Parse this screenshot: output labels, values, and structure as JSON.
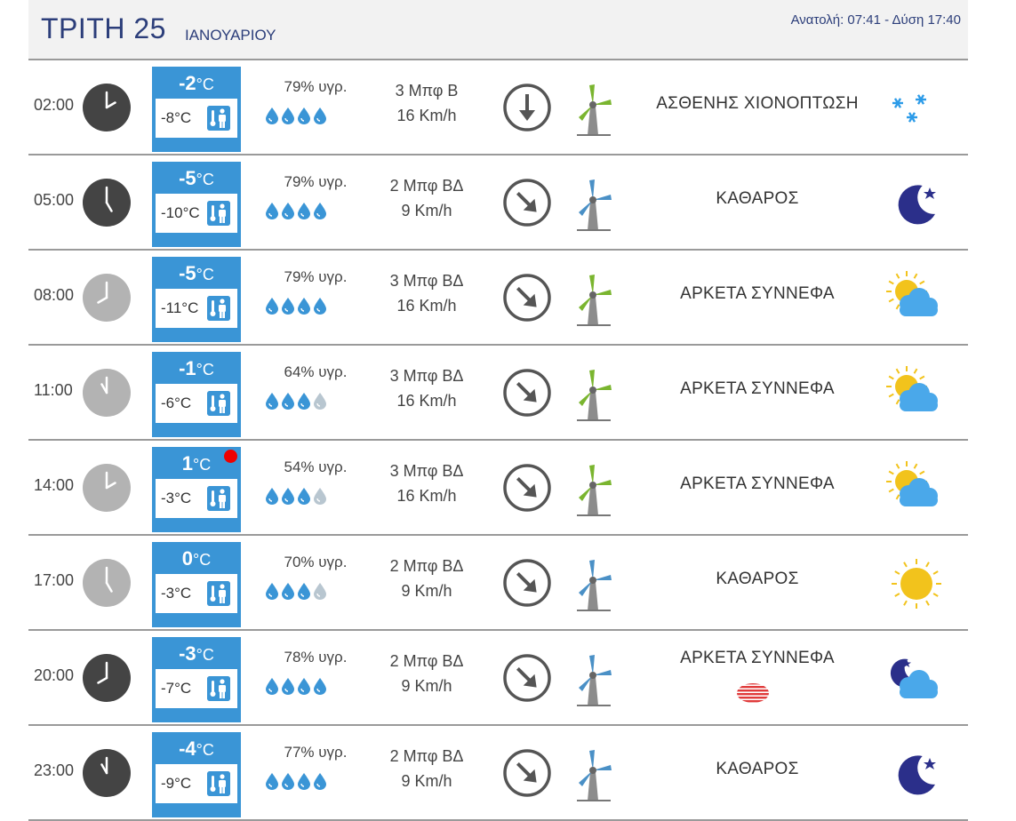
{
  "header": {
    "day": "ΤΡΙΤΗ 25",
    "month": "ΙΑΝΟΥΑΡΙΟΥ",
    "sun": "Ανατολή: 07:41  - Δύση 17:40"
  },
  "colors": {
    "accent": "#3a95d6",
    "title": "#2c3e7a",
    "drop_full": "#3a95d6",
    "drop_empty": "#b8c6d0",
    "alert": "#ee0000",
    "clock_dark": "#444444",
    "clock_light": "#b3b3b3"
  },
  "rows": [
    {
      "time": "02:00",
      "clock_hour": 2,
      "clock_style": "dark",
      "temp": "-2",
      "unit": "°C",
      "feels": "-8°C",
      "humidity": "79% υγρ.",
      "drops_full": 4,
      "beaufort": "3 Μπφ Β",
      "speed": "16 Km/h",
      "direction_deg": 0,
      "turbine": "green",
      "condition": "ΑΣΘΕΝΗΣ ΧΙΟΝΟΠΤΩΣΗ",
      "icon": "snow-icon",
      "alert": false
    },
    {
      "time": "05:00",
      "clock_hour": 5,
      "clock_style": "dark",
      "temp": "-5",
      "unit": "°C",
      "feels": "-10°C",
      "humidity": "79% υγρ.",
      "drops_full": 4,
      "beaufort": "2 Μπφ ΒΔ",
      "speed": "9 Km/h",
      "direction_deg": -45,
      "turbine": "blue",
      "condition": "ΚΑΘΑΡΟΣ",
      "icon": "moon-icon",
      "alert": false
    },
    {
      "time": "08:00",
      "clock_hour": 8,
      "clock_style": "light",
      "temp": "-5",
      "unit": "°C",
      "feels": "-11°C",
      "humidity": "79% υγρ.",
      "drops_full": 4,
      "beaufort": "3 Μπφ ΒΔ",
      "speed": "16 Km/h",
      "direction_deg": -45,
      "turbine": "green",
      "condition": "ΑΡΚΕΤΑ ΣΥΝΝΕΦΑ",
      "icon": "sun-cloud-icon",
      "alert": false
    },
    {
      "time": "11:00",
      "clock_hour": 11,
      "clock_style": "light",
      "temp": "-1",
      "unit": "°C",
      "feels": "-6°C",
      "humidity": "64% υγρ.",
      "drops_full": 3,
      "beaufort": "3 Μπφ ΒΔ",
      "speed": "16 Km/h",
      "direction_deg": -45,
      "turbine": "green",
      "condition": "ΑΡΚΕΤΑ ΣΥΝΝΕΦΑ",
      "icon": "sun-cloud-icon",
      "alert": false
    },
    {
      "time": "14:00",
      "clock_hour": 2,
      "clock_style": "light",
      "temp": "1",
      "unit": "°C",
      "feels": "-3°C",
      "humidity": "54% υγρ.",
      "drops_full": 3,
      "beaufort": "3 Μπφ ΒΔ",
      "speed": "16 Km/h",
      "direction_deg": -45,
      "turbine": "green",
      "condition": "ΑΡΚΕΤΑ ΣΥΝΝΕΦΑ",
      "icon": "sun-cloud-icon",
      "alert": true
    },
    {
      "time": "17:00",
      "clock_hour": 5,
      "clock_style": "light",
      "temp": "0",
      "unit": "°C",
      "feels": "-3°C",
      "humidity": "70% υγρ.",
      "drops_full": 3,
      "beaufort": "2 Μπφ ΒΔ",
      "speed": "9 Km/h",
      "direction_deg": -45,
      "turbine": "blue",
      "condition": "ΚΑΘΑΡΟΣ",
      "icon": "sun-icon",
      "alert": false
    },
    {
      "time": "20:00",
      "clock_hour": 8,
      "clock_style": "dark",
      "temp": "-3",
      "unit": "°C",
      "feels": "-7°C",
      "humidity": "78% υγρ.",
      "drops_full": 4,
      "beaufort": "2 Μπφ ΒΔ",
      "speed": "9 Km/h",
      "direction_deg": -45,
      "turbine": "blue",
      "condition": "ΑΡΚΕΤΑ ΣΥΝΝΕΦΑ",
      "icon": "moon-cloud-icon",
      "alert": false,
      "extra": "haze-icon"
    },
    {
      "time": "23:00",
      "clock_hour": 11,
      "clock_style": "dark",
      "temp": "-4",
      "unit": "°C",
      "feels": "-9°C",
      "humidity": "77% υγρ.",
      "drops_full": 4,
      "beaufort": "2 Μπφ ΒΔ",
      "speed": "9 Km/h",
      "direction_deg": -45,
      "turbine": "blue",
      "condition": "ΚΑΘΑΡΟΣ",
      "icon": "moon-icon",
      "alert": false
    }
  ]
}
